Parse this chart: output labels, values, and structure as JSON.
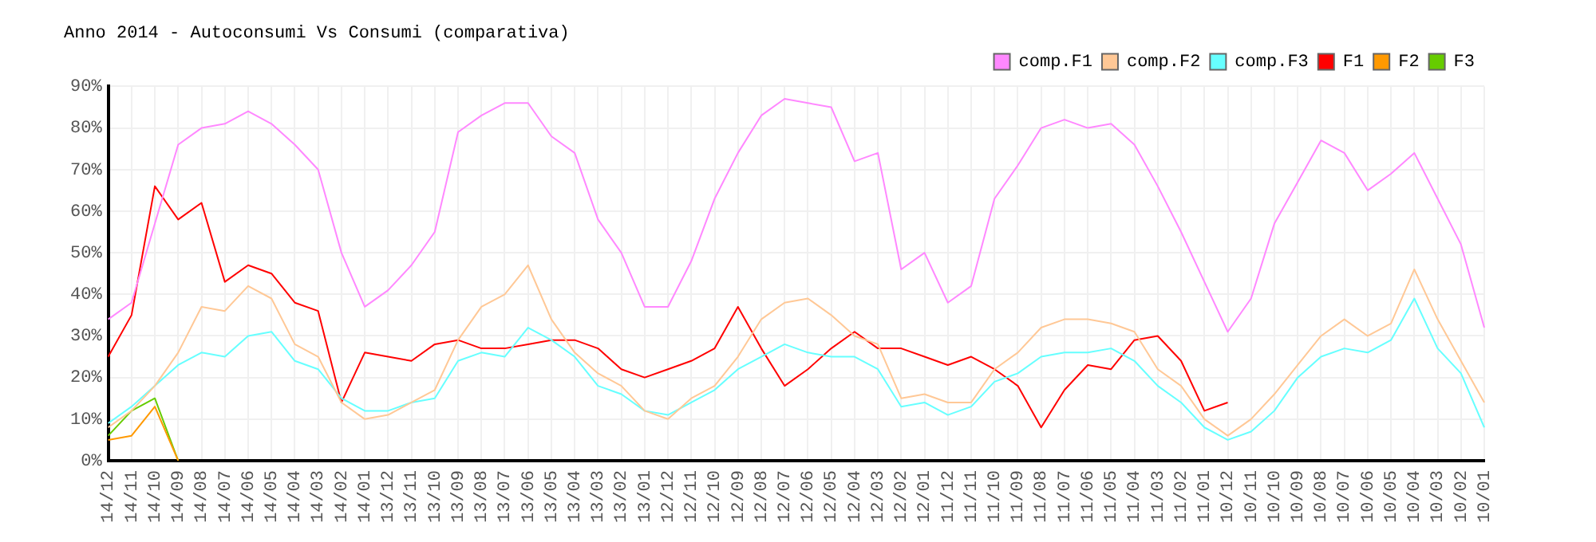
{
  "chart_data": {
    "type": "line",
    "title": "Anno 2014 - Autoconsumi Vs Consumi (comparativa)",
    "categories": [
      "14/12",
      "14/11",
      "14/10",
      "14/09",
      "14/08",
      "14/07",
      "14/06",
      "14/05",
      "14/04",
      "14/03",
      "14/02",
      "14/01",
      "13/12",
      "13/11",
      "13/10",
      "13/09",
      "13/08",
      "13/07",
      "13/06",
      "13/05",
      "13/04",
      "13/03",
      "13/02",
      "13/01",
      "12/12",
      "12/11",
      "12/10",
      "12/09",
      "12/08",
      "12/07",
      "12/06",
      "12/05",
      "12/04",
      "12/03",
      "12/02",
      "12/01",
      "11/12",
      "11/11",
      "11/10",
      "11/09",
      "11/08",
      "11/07",
      "11/06",
      "11/05",
      "11/04",
      "11/03",
      "11/02",
      "11/01",
      "10/12",
      "10/11",
      "10/10",
      "10/09",
      "10/08",
      "10/07",
      "10/06",
      "10/05",
      "10/04",
      "10/03",
      "10/02",
      "10/01"
    ],
    "series": [
      {
        "name": "comp.F1",
        "color": "#ff88ff",
        "values": [
          34,
          38,
          57,
          76,
          80,
          81,
          84,
          81,
          76,
          70,
          50,
          37,
          41,
          47,
          55,
          79,
          83,
          86,
          86,
          78,
          74,
          58,
          50,
          37,
          37,
          48,
          63,
          74,
          83,
          87,
          86,
          85,
          72,
          74,
          46,
          50,
          38,
          42,
          63,
          71,
          80,
          82,
          80,
          81,
          76,
          66,
          55,
          43,
          31,
          39,
          57,
          67,
          77,
          74,
          65,
          69,
          74,
          63,
          52,
          32
        ]
      },
      {
        "name": "comp.F2",
        "color": "#ffc896",
        "values": [
          8,
          12,
          18,
          26,
          37,
          36,
          42,
          39,
          28,
          25,
          14,
          10,
          11,
          14,
          17,
          29,
          37,
          40,
          47,
          34,
          26,
          21,
          18,
          12,
          10,
          15,
          18,
          25,
          34,
          38,
          39,
          35,
          30,
          28,
          15,
          16,
          14,
          14,
          22,
          26,
          32,
          34,
          34,
          33,
          31,
          22,
          18,
          10,
          6,
          10,
          16,
          23,
          30,
          34,
          30,
          33,
          46,
          34,
          24,
          14
        ]
      },
      {
        "name": "comp.F3",
        "color": "#66ffff",
        "values": [
          9,
          13,
          18,
          23,
          26,
          25,
          30,
          31,
          24,
          22,
          15,
          12,
          12,
          14,
          15,
          24,
          26,
          25,
          32,
          29,
          25,
          18,
          16,
          12,
          11,
          14,
          17,
          22,
          25,
          28,
          26,
          25,
          25,
          22,
          13,
          14,
          11,
          13,
          19,
          21,
          25,
          26,
          26,
          27,
          24,
          18,
          14,
          8,
          5,
          7,
          12,
          20,
          25,
          27,
          26,
          29,
          39,
          27,
          21,
          8
        ]
      },
      {
        "name": "F1",
        "color": "#ff0000",
        "values": [
          25,
          35,
          66,
          58,
          62,
          43,
          47,
          45,
          38,
          36,
          14,
          26,
          25,
          24,
          28,
          29,
          27,
          27,
          28,
          29,
          29,
          27,
          22,
          20,
          22,
          24,
          27,
          37,
          27,
          18,
          22,
          27,
          31,
          27,
          27,
          25,
          23,
          25,
          22,
          18,
          8,
          17,
          23,
          22,
          29,
          30,
          24,
          12,
          14,
          null,
          null,
          null,
          null,
          null,
          null,
          null,
          null,
          null,
          null,
          null
        ]
      },
      {
        "name": "F2",
        "color": "#ff9900",
        "values": [
          5,
          6,
          13,
          0,
          null,
          null,
          null,
          null,
          null,
          null,
          null,
          null,
          null,
          null,
          null,
          null,
          null,
          null,
          null,
          null,
          null,
          null,
          null,
          null,
          null,
          null,
          null,
          null,
          null,
          null,
          null,
          null,
          null,
          null,
          null,
          null,
          null,
          null,
          null,
          null,
          null,
          null,
          null,
          null,
          null,
          null,
          null,
          null,
          null,
          null,
          null,
          null,
          null,
          null,
          null,
          null,
          null,
          null,
          null,
          null
        ]
      },
      {
        "name": "F3",
        "color": "#66cc00",
        "values": [
          6,
          12,
          15,
          0,
          null,
          null,
          null,
          null,
          null,
          null,
          null,
          null,
          null,
          null,
          null,
          null,
          null,
          null,
          null,
          null,
          null,
          null,
          null,
          null,
          null,
          null,
          null,
          null,
          null,
          null,
          null,
          null,
          null,
          null,
          null,
          null,
          null,
          null,
          null,
          null,
          null,
          null,
          null,
          null,
          null,
          null,
          null,
          null,
          null,
          null,
          null,
          null,
          null,
          null,
          null,
          null,
          null,
          null,
          null,
          null
        ]
      }
    ],
    "ylim": [
      0,
      90
    ],
    "yticks": [
      {
        "value": 0,
        "label": "0%"
      },
      {
        "value": 10,
        "label": "10%"
      },
      {
        "value": 20,
        "label": "20%"
      },
      {
        "value": 30,
        "label": "30%"
      },
      {
        "value": 40,
        "label": "40%"
      },
      {
        "value": 50,
        "label": "50%"
      },
      {
        "value": 60,
        "label": "60%"
      },
      {
        "value": 70,
        "label": "70%"
      },
      {
        "value": 80,
        "label": "80%"
      },
      {
        "value": 90,
        "label": "90%"
      }
    ],
    "grid": true,
    "legend": "top right",
    "marker": "none",
    "line_style": "solid"
  }
}
